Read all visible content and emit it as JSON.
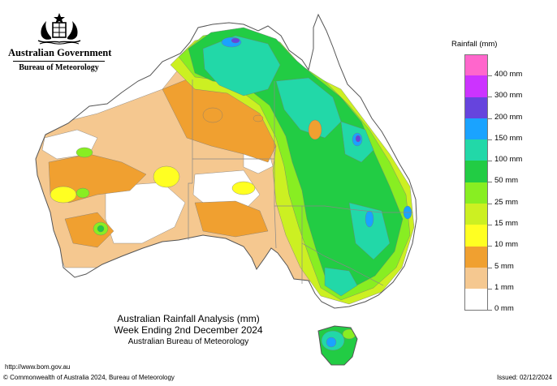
{
  "header": {
    "government": "Australian Government",
    "bureau": "Bureau of Meteorology"
  },
  "map": {
    "title": "Australian Rainfall Analysis (mm)",
    "subtitle": "Week Ending 2nd December 2024",
    "agency": "Australian Bureau of Meteorology",
    "region": "Australia"
  },
  "legend": {
    "title": "Rainfall (mm)",
    "items": [
      {
        "label": "400 mm",
        "color": "#ff66cc"
      },
      {
        "label": "300 mm",
        "color": "#cc33ff"
      },
      {
        "label": "200 mm",
        "color": "#6644dd"
      },
      {
        "label": "150 mm",
        "color": "#1aa3ff"
      },
      {
        "label": "100 mm",
        "color": "#22d8a8"
      },
      {
        "label": "50 mm",
        "color": "#22cc44"
      },
      {
        "label": "25 mm",
        "color": "#88ee22"
      },
      {
        "label": "15 mm",
        "color": "#ccf022"
      },
      {
        "label": "10 mm",
        "color": "#ffff22"
      },
      {
        "label": "5 mm",
        "color": "#f0a030"
      },
      {
        "label": "1 mm",
        "color": "#f5c890"
      },
      {
        "label": "0 mm",
        "color": "#ffffff"
      }
    ]
  },
  "footer": {
    "url": "http://www.bom.gov.au",
    "copyright": "© Commonwealth of Australia 2024, Bureau of Meteorology",
    "issued": "Issued: 02/12/2024"
  },
  "colors": {
    "dry": "#ffffff",
    "light": "#f5c890",
    "orange": "#f0a030",
    "yellow": "#ffff22",
    "yellowgreen": "#ccf022",
    "lime": "#88ee22",
    "green": "#22cc44",
    "teal": "#22d8a8",
    "blue": "#1aa3ff",
    "indigo": "#6644dd",
    "outline": "#555555"
  }
}
